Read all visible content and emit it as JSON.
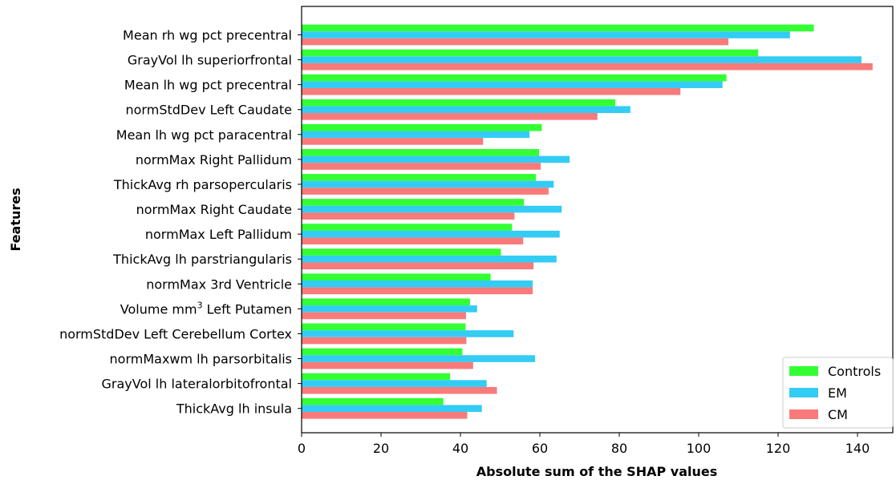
{
  "chart_data": {
    "type": "bar",
    "orientation": "horizontal",
    "xlabel": "Absolute sum of the SHAP values",
    "ylabel": "Features",
    "xlim": [
      0,
      150
    ],
    "xticks": [
      0,
      20,
      40,
      60,
      80,
      100,
      120,
      140
    ],
    "grid": false,
    "legend_position": "bottom-right",
    "categories": [
      {
        "label": "Mean rh wg pct precentral"
      },
      {
        "label": "GrayVol lh superiorfrontal"
      },
      {
        "label": "Mean lh wg pct precentral"
      },
      {
        "label": "normStdDev Left Caudate"
      },
      {
        "label": "Mean lh wg pct paracentral"
      },
      {
        "label": "normMax Right Pallidum"
      },
      {
        "label": "ThickAvg rh parsopercularis"
      },
      {
        "label": "normMax Right Caudate"
      },
      {
        "label": "normMax Left Pallidum"
      },
      {
        "label": "ThickAvg lh parstriangularis"
      },
      {
        "label": "normMax 3rd Ventricle"
      },
      {
        "label": "Volume mm",
        "sup": "3",
        "suffix": " Left Putamen"
      },
      {
        "label": "normStdDev Left Cerebellum Cortex"
      },
      {
        "label": "normMaxwm lh parsorbitalis"
      },
      {
        "label": "GrayVol lh lateralorbitofrontal"
      },
      {
        "label": "ThickAvg lh insula"
      }
    ],
    "series": [
      {
        "name": "Controls",
        "color": "#33ff33",
        "values": [
          129,
          115,
          107,
          79,
          60.5,
          59.8,
          59,
          56,
          53,
          50.2,
          47.6,
          42.4,
          41.3,
          40.5,
          37.4,
          35.7
        ]
      },
      {
        "name": "EM",
        "color": "#33ccf5",
        "values": [
          123,
          141,
          106,
          82.8,
          57.4,
          67.5,
          63.5,
          65.5,
          65,
          64.2,
          58.2,
          44.2,
          53.4,
          58.8,
          46.6,
          45.4
        ]
      },
      {
        "name": "CM",
        "color": "#f87a7a",
        "values": [
          107.5,
          143.8,
          95.4,
          74.5,
          45.7,
          60.2,
          62.2,
          53.6,
          55.8,
          58.4,
          58.2,
          41.4,
          41.5,
          43.2,
          49.2,
          41.7
        ]
      }
    ]
  }
}
